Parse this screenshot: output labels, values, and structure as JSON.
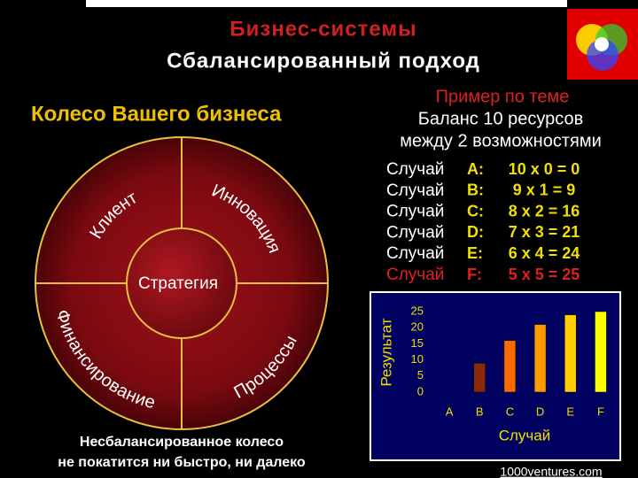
{
  "header": {
    "title": "Бизнес-системы",
    "subtitle": "Сбалансированный подход"
  },
  "wheel": {
    "title": "Колесо Вашего бизнеса",
    "center": "Стратегия",
    "segments": [
      "Клиент",
      "Инновация",
      "Финансирование",
      "Процессы"
    ],
    "caption": [
      "Несбалансированное колесо",
      "не покатится ни быстро, ни далеко"
    ]
  },
  "example": {
    "title": "Пример по теме",
    "lines": [
      "Баланс 10 ресурсов",
      "между 2 возможностями"
    ],
    "cases": [
      {
        "label": "Случай",
        "letter": "A:",
        "formula": "10 x 0 = 0"
      },
      {
        "label": "Случай",
        "letter": "B:",
        "formula": "9 x 1 = 9"
      },
      {
        "label": "Случай",
        "letter": "C:",
        "formula": "8 x 2 = 16"
      },
      {
        "label": "Случай",
        "letter": "D:",
        "formula": "7 x 3 = 21"
      },
      {
        "label": "Случай",
        "letter": "E:",
        "formula": "6 x 4 = 24"
      },
      {
        "label": "Случай",
        "letter": "F:",
        "formula": "5 x 5 = 25"
      }
    ]
  },
  "chart_data": {
    "type": "bar",
    "xlabel": "Случай",
    "ylabel": "Результат",
    "categories": [
      "A",
      "B",
      "C",
      "D",
      "E",
      "F"
    ],
    "values": [
      0,
      9,
      16,
      21,
      24,
      25
    ],
    "colors": [
      "#8b2a0a",
      "#8b2a0a",
      "#ff6a00",
      "#ff9a00",
      "#ffcc00",
      "#ffff00"
    ],
    "ylim": [
      0,
      25
    ],
    "yticks": [
      0,
      5,
      10,
      15,
      20,
      25
    ]
  },
  "footer": "1000ventures.com"
}
